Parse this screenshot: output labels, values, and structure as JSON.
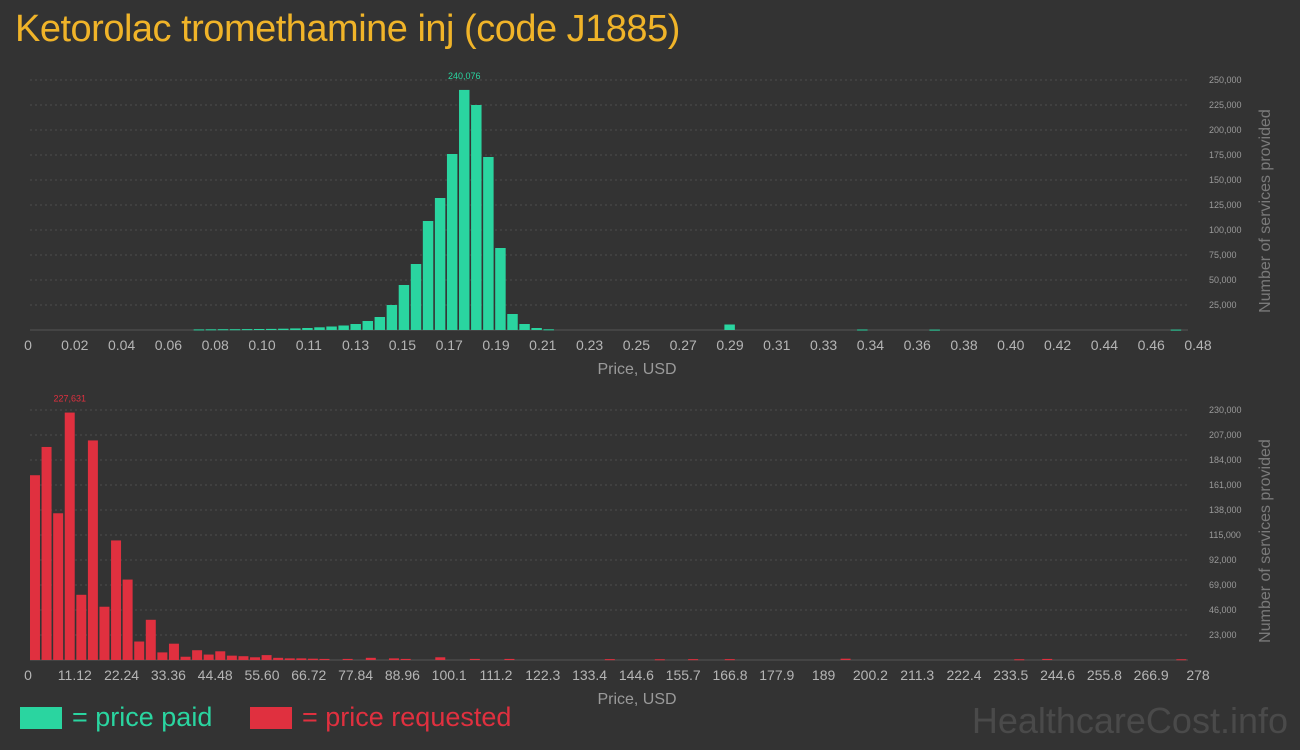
{
  "title": "Ketorolac tromethamine inj (code J1885)",
  "colors": {
    "paid": "#2ad5a0",
    "requested": "#e0303f",
    "title": "#f0b429"
  },
  "legend": {
    "paid": "= price paid",
    "requested": "= price requested"
  },
  "watermark": "HealthcareCost.info",
  "chart_data": [
    {
      "type": "bar",
      "xlabel": "Price, USD",
      "ylabel": "Number of services provided",
      "xlim": [
        0,
        0.48
      ],
      "ylim": [
        0,
        250000
      ],
      "bin_width": 0.005,
      "xticks": [
        "0",
        "0.02",
        "0.04",
        "0.06",
        "0.08",
        "0.10",
        "0.11",
        "0.13",
        "0.15",
        "0.17",
        "0.19",
        "0.21",
        "0.23",
        "0.25",
        "0.27",
        "0.29",
        "0.31",
        "0.33",
        "0.34",
        "0.36",
        "0.38",
        "0.40",
        "0.42",
        "0.44",
        "0.46",
        "0.48"
      ],
      "yticks": [
        "25,000",
        "50,000",
        "75,000",
        "100,000",
        "125,000",
        "150,000",
        "175,000",
        "200,000",
        "225,000",
        "250,000"
      ],
      "ytick_values": [
        25000,
        50000,
        75000,
        100000,
        125000,
        150000,
        175000,
        200000,
        225000,
        250000
      ],
      "peak_label": "240,076",
      "x": [
        0.07,
        0.075,
        0.08,
        0.085,
        0.09,
        0.095,
        0.1,
        0.105,
        0.11,
        0.115,
        0.12,
        0.125,
        0.13,
        0.135,
        0.14,
        0.145,
        0.15,
        0.155,
        0.16,
        0.165,
        0.17,
        0.175,
        0.18,
        0.185,
        0.19,
        0.195,
        0.2,
        0.205,
        0.21,
        0.215,
        0.29,
        0.345,
        0.375,
        0.475
      ],
      "values": [
        600,
        700,
        800,
        800,
        900,
        1000,
        1100,
        1300,
        1600,
        2000,
        2700,
        3500,
        4500,
        6000,
        9000,
        13000,
        25000,
        45000,
        66000,
        109000,
        132000,
        176000,
        240076,
        225000,
        173000,
        82000,
        16000,
        6000,
        2000,
        700,
        5500,
        500,
        400,
        400
      ]
    },
    {
      "type": "bar",
      "xlabel": "Price, USD",
      "ylabel": "Number of services provided",
      "xlim": [
        0,
        278
      ],
      "ylim": [
        0,
        230000
      ],
      "bin_width": 2.78,
      "xticks": [
        "0",
        "11.12",
        "22.24",
        "33.36",
        "44.48",
        "55.60",
        "66.72",
        "77.84",
        "88.96",
        "100.1",
        "111.2",
        "122.3",
        "133.4",
        "144.6",
        "155.7",
        "166.8",
        "177.9",
        "189",
        "200.2",
        "211.3",
        "222.4",
        "233.5",
        "244.6",
        "255.8",
        "266.9",
        "278"
      ],
      "yticks": [
        "23,000",
        "46,000",
        "69,000",
        "92,000",
        "115,000",
        "138,000",
        "161,000",
        "184,000",
        "207,000",
        "230,000"
      ],
      "ytick_values": [
        23000,
        46000,
        69000,
        92000,
        115000,
        138000,
        161000,
        184000,
        207000,
        230000
      ],
      "peak_label": "227,631",
      "x": [
        0,
        2.78,
        5.56,
        8.34,
        11.12,
        13.9,
        16.68,
        19.46,
        22.24,
        25.02,
        27.8,
        30.58,
        33.36,
        36.14,
        38.92,
        41.7,
        44.48,
        47.26,
        50.04,
        52.82,
        55.6,
        58.38,
        61.16,
        63.94,
        66.72,
        69.5,
        75.06,
        80.62,
        86.18,
        89.0,
        97.3,
        105.6,
        113.9,
        138.0,
        150.0,
        158.0,
        166.8,
        194.6,
        236.3,
        243.0,
        275.2
      ],
      "values": [
        170000,
        196000,
        135000,
        227631,
        60000,
        202000,
        49000,
        110000,
        74000,
        17000,
        37000,
        7000,
        15000,
        3000,
        9000,
        5000,
        8000,
        4000,
        3500,
        2500,
        4500,
        2000,
        1500,
        1500,
        1200,
        1000,
        1000,
        2000,
        1500,
        1000,
        2500,
        1000,
        1000,
        800,
        700,
        800,
        800,
        1200,
        700,
        1000,
        700
      ]
    }
  ]
}
